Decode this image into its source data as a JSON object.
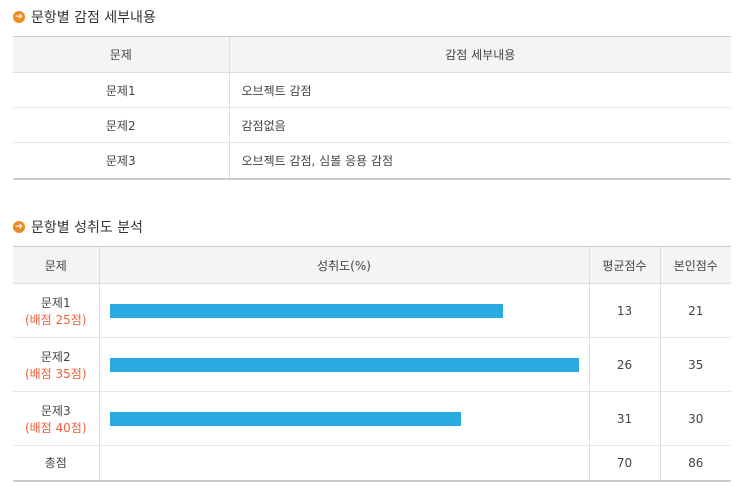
{
  "deduction_section": {
    "title": "문항별 감점 세부내용",
    "headers": [
      "문제",
      "감점 세부내용"
    ],
    "rows": [
      {
        "question": "문제1",
        "detail": "오브젝트 감점"
      },
      {
        "question": "문제2",
        "detail": "감점없음"
      },
      {
        "question": "문제3",
        "detail": "오브젝트 감점, 심볼 응용 감점"
      }
    ]
  },
  "achievement_section": {
    "title": "문항별 성취도 분석",
    "headers": [
      "문제",
      "성취도(%)",
      "평균점수",
      "본인점수"
    ],
    "bar_color": "#29abe2",
    "rows": [
      {
        "question": "문제1",
        "points": "(배점 25점)",
        "achievement_pct": 84,
        "avg": "13",
        "mine": "21"
      },
      {
        "question": "문제2",
        "points": "(배점 35점)",
        "achievement_pct": 100,
        "avg": "26",
        "mine": "35"
      },
      {
        "question": "문제3",
        "points": "(배점 40점)",
        "achievement_pct": 75,
        "avg": "31",
        "mine": "30"
      }
    ],
    "total": {
      "label": "총점",
      "avg": "70",
      "mine": "86"
    }
  }
}
